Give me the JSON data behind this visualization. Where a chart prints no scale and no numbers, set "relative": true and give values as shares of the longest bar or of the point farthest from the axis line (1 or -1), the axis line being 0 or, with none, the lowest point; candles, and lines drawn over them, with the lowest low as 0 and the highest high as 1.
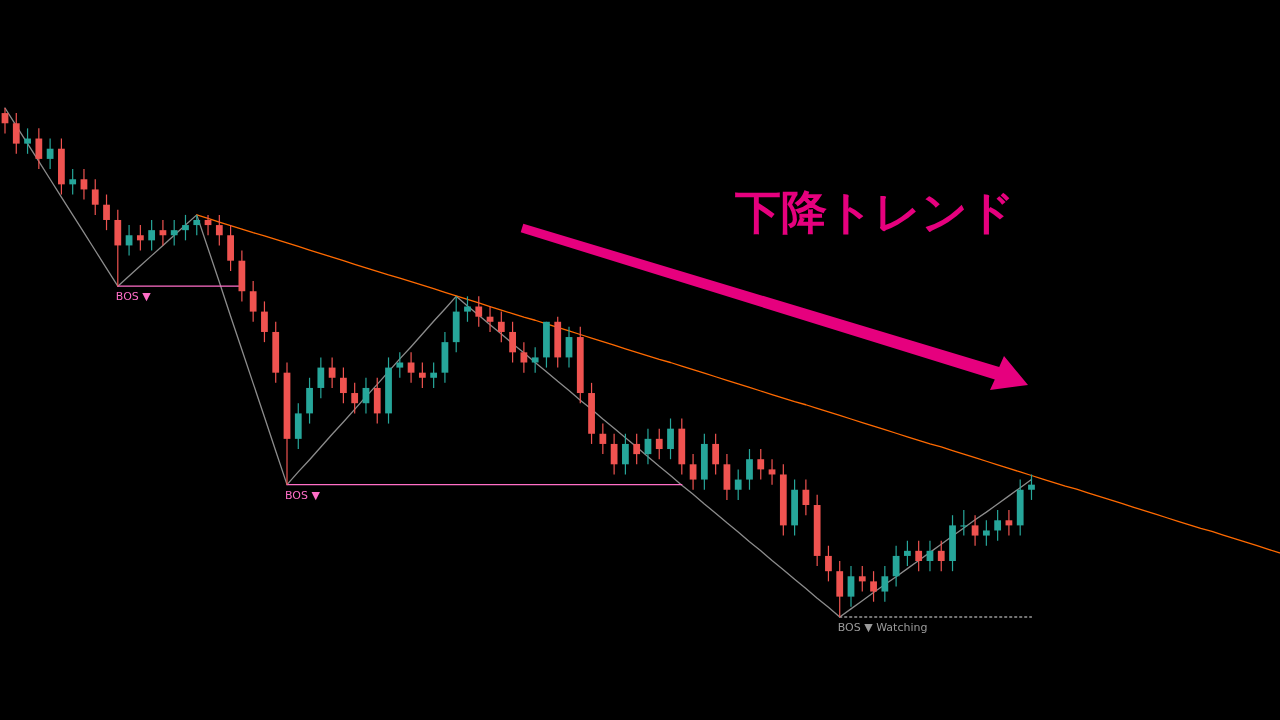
{
  "chart_data": [
    {
      "type": "candlestick",
      "title": "下降トレンド",
      "relative": true,
      "categories": [
        null,
        null,
        null,
        null,
        null,
        null,
        null,
        null,
        null,
        null,
        null,
        null,
        null,
        null,
        null,
        null,
        null,
        null,
        null,
        null,
        null,
        null,
        null,
        null,
        null,
        null,
        null,
        null,
        null,
        null,
        null,
        null,
        null,
        null,
        null,
        null,
        null,
        null,
        null,
        null,
        null,
        null,
        null,
        null,
        null,
        null,
        null,
        null,
        null,
        null,
        null,
        null,
        null,
        null,
        null,
        null,
        null,
        null,
        null,
        null,
        null,
        null,
        null,
        null,
        null,
        null,
        null,
        null,
        null,
        null,
        null,
        null,
        null,
        null,
        null,
        null,
        null,
        null,
        null,
        null,
        null,
        null,
        null,
        null,
        null,
        null,
        null,
        null,
        null,
        null,
        null,
        null
      ],
      "ohlc": [
        [
          0.99,
          1.0,
          0.95,
          0.97
        ],
        [
          0.97,
          0.99,
          0.91,
          0.93
        ],
        [
          0.93,
          0.96,
          0.91,
          0.94
        ],
        [
          0.94,
          0.96,
          0.88,
          0.9
        ],
        [
          0.9,
          0.94,
          0.88,
          0.92
        ],
        [
          0.92,
          0.94,
          0.83,
          0.85
        ],
        [
          0.85,
          0.88,
          0.83,
          0.86
        ],
        [
          0.86,
          0.88,
          0.82,
          0.84
        ],
        [
          0.84,
          0.86,
          0.79,
          0.81
        ],
        [
          0.81,
          0.83,
          0.76,
          0.78
        ],
        [
          0.78,
          0.8,
          0.65,
          0.73
        ],
        [
          0.73,
          0.77,
          0.71,
          0.75
        ],
        [
          0.75,
          0.77,
          0.72,
          0.74
        ],
        [
          0.74,
          0.78,
          0.72,
          0.76
        ],
        [
          0.76,
          0.78,
          0.73,
          0.75
        ],
        [
          0.75,
          0.78,
          0.73,
          0.76
        ],
        [
          0.76,
          0.79,
          0.74,
          0.77
        ],
        [
          0.77,
          0.79,
          0.75,
          0.78
        ],
        [
          0.78,
          0.79,
          0.75,
          0.77
        ],
        [
          0.77,
          0.79,
          0.73,
          0.75
        ],
        [
          0.75,
          0.77,
          0.68,
          0.7
        ],
        [
          0.7,
          0.72,
          0.62,
          0.64
        ],
        [
          0.64,
          0.66,
          0.58,
          0.6
        ],
        [
          0.6,
          0.62,
          0.54,
          0.56
        ],
        [
          0.56,
          0.58,
          0.46,
          0.48
        ],
        [
          0.48,
          0.5,
          0.26,
          0.35
        ],
        [
          0.35,
          0.42,
          0.33,
          0.4
        ],
        [
          0.4,
          0.47,
          0.38,
          0.45
        ],
        [
          0.45,
          0.51,
          0.43,
          0.49
        ],
        [
          0.49,
          0.51,
          0.45,
          0.47
        ],
        [
          0.47,
          0.49,
          0.42,
          0.44
        ],
        [
          0.44,
          0.46,
          0.4,
          0.42
        ],
        [
          0.42,
          0.47,
          0.4,
          0.45
        ],
        [
          0.45,
          0.47,
          0.38,
          0.4
        ],
        [
          0.4,
          0.51,
          0.38,
          0.49
        ],
        [
          0.49,
          0.52,
          0.47,
          0.5
        ],
        [
          0.5,
          0.52,
          0.46,
          0.48
        ],
        [
          0.48,
          0.5,
          0.45,
          0.47
        ],
        [
          0.47,
          0.5,
          0.45,
          0.48
        ],
        [
          0.48,
          0.56,
          0.46,
          0.54
        ],
        [
          0.54,
          0.63,
          0.52,
          0.6
        ],
        [
          0.6,
          0.63,
          0.58,
          0.61
        ],
        [
          0.61,
          0.63,
          0.57,
          0.59
        ],
        [
          0.59,
          0.61,
          0.56,
          0.58
        ],
        [
          0.58,
          0.6,
          0.54,
          0.56
        ],
        [
          0.56,
          0.58,
          0.5,
          0.52
        ],
        [
          0.52,
          0.54,
          0.48,
          0.5
        ],
        [
          0.5,
          0.53,
          0.48,
          0.51
        ],
        [
          0.51,
          0.58,
          0.49,
          0.58
        ],
        [
          0.58,
          0.59,
          0.49,
          0.51
        ],
        [
          0.51,
          0.57,
          0.49,
          0.55
        ],
        [
          0.55,
          0.57,
          0.42,
          0.44
        ],
        [
          0.44,
          0.46,
          0.34,
          0.36
        ],
        [
          0.36,
          0.38,
          0.32,
          0.34
        ],
        [
          0.34,
          0.36,
          0.28,
          0.3
        ],
        [
          0.3,
          0.36,
          0.28,
          0.34
        ],
        [
          0.34,
          0.36,
          0.3,
          0.32
        ],
        [
          0.32,
          0.37,
          0.3,
          0.35
        ],
        [
          0.35,
          0.37,
          0.31,
          0.33
        ],
        [
          0.33,
          0.39,
          0.31,
          0.37
        ],
        [
          0.37,
          0.39,
          0.28,
          0.3
        ],
        [
          0.3,
          0.32,
          0.25,
          0.27
        ],
        [
          0.27,
          0.36,
          0.25,
          0.34
        ],
        [
          0.34,
          0.36,
          0.28,
          0.3
        ],
        [
          0.3,
          0.32,
          0.23,
          0.25
        ],
        [
          0.25,
          0.29,
          0.23,
          0.27
        ],
        [
          0.27,
          0.33,
          0.25,
          0.31
        ],
        [
          0.31,
          0.33,
          0.27,
          0.29
        ],
        [
          0.29,
          0.31,
          0.26,
          0.28
        ],
        [
          0.28,
          0.3,
          0.16,
          0.18
        ],
        [
          0.18,
          0.27,
          0.16,
          0.25
        ],
        [
          0.25,
          0.27,
          0.2,
          0.22
        ],
        [
          0.22,
          0.24,
          0.1,
          0.12
        ],
        [
          0.12,
          0.14,
          0.07,
          0.09
        ],
        [
          0.09,
          0.11,
          0.0,
          0.04
        ],
        [
          0.04,
          0.1,
          0.02,
          0.08
        ],
        [
          0.08,
          0.1,
          0.05,
          0.07
        ],
        [
          0.07,
          0.09,
          0.03,
          0.05
        ],
        [
          0.05,
          0.1,
          0.03,
          0.08
        ],
        [
          0.08,
          0.14,
          0.06,
          0.12
        ],
        [
          0.12,
          0.15,
          0.1,
          0.13
        ],
        [
          0.13,
          0.15,
          0.09,
          0.11
        ],
        [
          0.11,
          0.15,
          0.09,
          0.13
        ],
        [
          0.13,
          0.15,
          0.09,
          0.11
        ],
        [
          0.11,
          0.2,
          0.09,
          0.18
        ],
        [
          0.18,
          0.21,
          0.16,
          0.18
        ],
        [
          0.18,
          0.2,
          0.14,
          0.16
        ],
        [
          0.16,
          0.19,
          0.14,
          0.17
        ],
        [
          0.17,
          0.21,
          0.15,
          0.19
        ],
        [
          0.19,
          0.21,
          0.16,
          0.18
        ],
        [
          0.18,
          0.27,
          0.16,
          0.25
        ],
        [
          0.25,
          0.28,
          0.23,
          0.26
        ]
      ]
    },
    {
      "type": "line",
      "relative": true,
      "categories": [
        null,
        null,
        null,
        null,
        null,
        null,
        null,
        null,
        null,
        null,
        null,
        null,
        null,
        null,
        null,
        null,
        null,
        null,
        null,
        null,
        null,
        null,
        null,
        null,
        null,
        null,
        null,
        null,
        null,
        null,
        null,
        null,
        null,
        null,
        null,
        null,
        null,
        null,
        null,
        null,
        null,
        null,
        null,
        null,
        null,
        null,
        null,
        null,
        null,
        null,
        null,
        null,
        null,
        null,
        null,
        null,
        null,
        null,
        null,
        null,
        null,
        null,
        null,
        null,
        null,
        null,
        null,
        null,
        null,
        null,
        null,
        null,
        null,
        null,
        null,
        null,
        null,
        null,
        null,
        null,
        null,
        null,
        null,
        null,
        null,
        null,
        null,
        null,
        null,
        null,
        null,
        null,
        null,
        null,
        null,
        null,
        null,
        null,
        null,
        null,
        null,
        null,
        null,
        null,
        null,
        null,
        null,
        null,
        null,
        null,
        null,
        null,
        null,
        null
      ],
      "series": [
        {
          "color": "#8c8c8c",
          "values": [
            1.0,
            0.965,
            0.93,
            0.895,
            0.86,
            0.825,
            0.79,
            0.755,
            0.72,
            0.685,
            0.65,
            0.67,
            0.69,
            0.71,
            0.73,
            0.75,
            0.77,
            0.79,
            0.724,
            0.658,
            0.591,
            0.525,
            0.459,
            0.393,
            0.326,
            0.26,
            0.285,
            0.309,
            0.334,
            0.359,
            0.383,
            0.408,
            0.433,
            0.457,
            0.482,
            0.507,
            0.531,
            0.556,
            0.581,
            0.605,
            0.63,
            0.611,
            0.593,
            0.574,
            0.556,
            0.537,
            0.519,
            0.5,
            0.482,
            0.463,
            0.445,
            0.426,
            0.408,
            0.389,
            0.371,
            0.352,
            0.334,
            0.315,
            0.296,
            0.278,
            0.259,
            0.241,
            0.222,
            0.204,
            0.185,
            0.167,
            0.148,
            0.13,
            0.111,
            0.093,
            0.074,
            0.056,
            0.037,
            0.019,
            0.0,
            0.016,
            0.032,
            0.048,
            0.064,
            0.079,
            0.095,
            0.111,
            0.127,
            0.143,
            0.159,
            0.175,
            0.191,
            0.206,
            0.222,
            0.238,
            0.254,
            0.27,
            null,
            null,
            null,
            null,
            null,
            null,
            null,
            null,
            null,
            null,
            null,
            null,
            null,
            null,
            null,
            null,
            null,
            null,
            null,
            null,
            null,
            null
          ]
        },
        {
          "color": "#ff6a00",
          "values": [
            null,
            null,
            null,
            null,
            null,
            null,
            null,
            null,
            null,
            null,
            null,
            null,
            null,
            null,
            null,
            null,
            null,
            0.79,
            0.783,
            0.776,
            0.769,
            0.762,
            0.755,
            0.749,
            0.742,
            0.735,
            0.728,
            0.721,
            0.714,
            0.707,
            0.7,
            0.693,
            0.686,
            0.679,
            0.672,
            0.666,
            0.659,
            0.652,
            0.645,
            0.638,
            0.631,
            0.624,
            0.617,
            0.61,
            0.603,
            0.596,
            0.589,
            0.583,
            0.576,
            0.569,
            0.562,
            0.555,
            0.548,
            0.541,
            0.534,
            0.527,
            0.52,
            0.513,
            0.506,
            0.5,
            0.493,
            0.486,
            0.479,
            0.472,
            0.465,
            0.458,
            0.451,
            0.444,
            0.437,
            0.43,
            0.423,
            0.417,
            0.41,
            0.403,
            0.396,
            0.389,
            0.382,
            0.375,
            0.368,
            0.361,
            0.354,
            0.347,
            0.34,
            0.334,
            0.327,
            0.32,
            0.313,
            0.306,
            0.299,
            0.292,
            0.285,
            0.278,
            0.271,
            0.264,
            0.257,
            0.251,
            0.244,
            0.237,
            0.23,
            0.223,
            0.216,
            0.209,
            0.202,
            0.195,
            0.188,
            0.181,
            0.174,
            0.168,
            0.161,
            0.154,
            0.147,
            0.14,
            0.133,
            0.126
          ]
        },
        {
          "name": "BOS ▼",
          "color": "#ff6ec7",
          "values": [
            null,
            null,
            null,
            null,
            null,
            null,
            null,
            null,
            null,
            null,
            0.65,
            0.65,
            0.65,
            0.65,
            0.65,
            0.65,
            0.65,
            0.65,
            0.65,
            0.65,
            0.65,
            0.65,
            null,
            null,
            null,
            null,
            null,
            null,
            null,
            null,
            null,
            null,
            null,
            null,
            null,
            null,
            null,
            null,
            null,
            null,
            null,
            null,
            null,
            null,
            null,
            null,
            null,
            null,
            null,
            null,
            null,
            null,
            null,
            null,
            null,
            null,
            null,
            null,
            null,
            null,
            null,
            null,
            null,
            null,
            null,
            null,
            null,
            null,
            null,
            null,
            null,
            null,
            null,
            null,
            null,
            null,
            null,
            null,
            null,
            null,
            null,
            null,
            null,
            null,
            null,
            null,
            null,
            null,
            null,
            null,
            null,
            null,
            null,
            null,
            null,
            null,
            null,
            null,
            null,
            null,
            null,
            null,
            null,
            null,
            null,
            null,
            null,
            null,
            null,
            null,
            null,
            null,
            null,
            null
          ]
        },
        {
          "name": "BOS ▼",
          "color": "#ff6ec7",
          "values": [
            null,
            null,
            null,
            null,
            null,
            null,
            null,
            null,
            null,
            null,
            null,
            null,
            null,
            null,
            null,
            null,
            null,
            null,
            null,
            null,
            null,
            null,
            null,
            null,
            null,
            0.26,
            0.26,
            0.26,
            0.26,
            0.26,
            0.26,
            0.26,
            0.26,
            0.26,
            0.26,
            0.26,
            0.26,
            0.26,
            0.26,
            0.26,
            0.26,
            0.26,
            0.26,
            0.26,
            0.26,
            0.26,
            0.26,
            0.26,
            0.26,
            0.26,
            0.26,
            0.26,
            0.26,
            0.26,
            0.26,
            0.26,
            0.26,
            0.26,
            0.26,
            0.26,
            0.26,
            null,
            null,
            null,
            null,
            null,
            null,
            null,
            null,
            null,
            null,
            null,
            null,
            null,
            null,
            null,
            null,
            null,
            null,
            null,
            null,
            null,
            null,
            null,
            null,
            null,
            null,
            null,
            null,
            null,
            null,
            null,
            null,
            null,
            null,
            null,
            null,
            null,
            null,
            null,
            null,
            null,
            null,
            null,
            null,
            null,
            null,
            null,
            null,
            null,
            null,
            null,
            null,
            null
          ]
        },
        {
          "name": "BOS ▼ Watching",
          "color": "#9a9a9a",
          "line_style": "dotted",
          "values": [
            null,
            null,
            null,
            null,
            null,
            null,
            null,
            null,
            null,
            null,
            null,
            null,
            null,
            null,
            null,
            null,
            null,
            null,
            null,
            null,
            null,
            null,
            null,
            null,
            null,
            null,
            null,
            null,
            null,
            null,
            null,
            null,
            null,
            null,
            null,
            null,
            null,
            null,
            null,
            null,
            null,
            null,
            null,
            null,
            null,
            null,
            null,
            null,
            null,
            null,
            null,
            null,
            null,
            null,
            null,
            null,
            null,
            null,
            null,
            null,
            null,
            null,
            null,
            null,
            null,
            null,
            null,
            null,
            null,
            null,
            null,
            null,
            null,
            null,
            0.0,
            0.0,
            0.0,
            0.0,
            0.0,
            0.0,
            0.0,
            0.0,
            0.0,
            0.0,
            0.0,
            0.0,
            0.0,
            0.0,
            0.0,
            0.0,
            0.0,
            0.0,
            null,
            null,
            null,
            null,
            null,
            null,
            null,
            null,
            null,
            null,
            null,
            null,
            null,
            null,
            null,
            null,
            null,
            null,
            null,
            null,
            null,
            null
          ]
        }
      ]
    }
  ]
}
